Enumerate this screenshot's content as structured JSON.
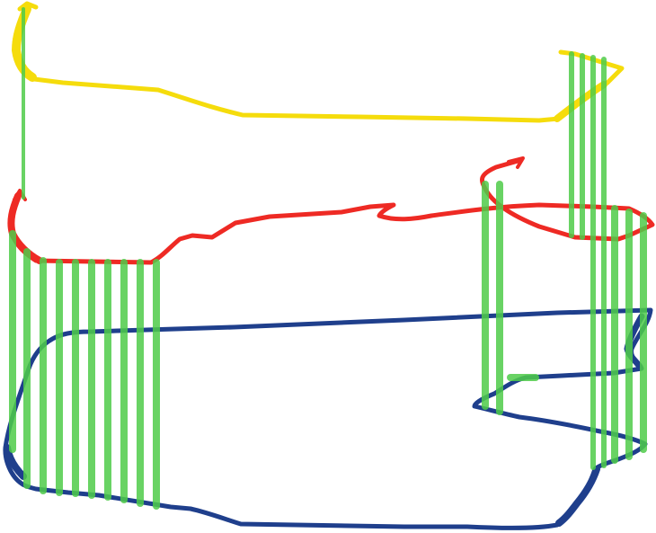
{
  "colors": {
    "background": "#ffffff",
    "upper_route": "#f5dc0c",
    "middle_route": "#ee2a24",
    "ground_route": "#1f3f8c",
    "support_posts": "#4fcc4a"
  },
  "routes": [
    {
      "name": "upper-route",
      "color_key": "upper_route"
    },
    {
      "name": "middle-route",
      "color_key": "middle_route"
    },
    {
      "name": "ground-route",
      "color_key": "ground_route"
    }
  ],
  "support_posts": {
    "color_key": "support_posts"
  }
}
